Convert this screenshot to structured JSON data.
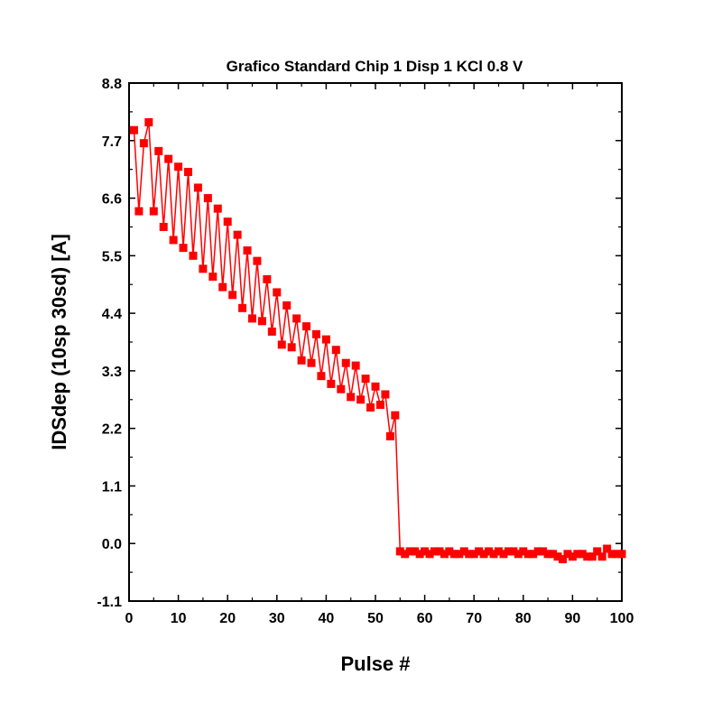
{
  "chart_data": {
    "type": "line",
    "title": "Grafico Standard Chip 1 Disp 1 KCl 0.8 V",
    "xlabel": "Pulse #",
    "ylabel": "IDSdep (10sp 30sd) [A]",
    "xlim": [
      0,
      100
    ],
    "ylim": [
      -1.1,
      8.8
    ],
    "x_ticks": [
      0,
      10,
      20,
      30,
      40,
      50,
      60,
      70,
      80,
      90,
      100
    ],
    "x_tick_labels": [
      "0",
      "10",
      "20",
      "30",
      "40",
      "50",
      "60",
      "70",
      "80",
      "90",
      "100"
    ],
    "y_ticks": [
      -1.1,
      0.0,
      1.1,
      2.2,
      3.3,
      4.4,
      5.5,
      6.6,
      7.7,
      8.8
    ],
    "y_tick_labels": [
      "-1.1",
      "0.0",
      "1.1",
      "2.2",
      "3.3",
      "4.4",
      "5.5",
      "6.6",
      "7.7",
      "8.8"
    ],
    "grid": false,
    "series": [
      {
        "color": "#ff0000",
        "marker": "square",
        "x": [
          1,
          2,
          3,
          4,
          5,
          6,
          7,
          8,
          9,
          10,
          11,
          12,
          13,
          14,
          15,
          16,
          17,
          18,
          19,
          20,
          21,
          22,
          23,
          24,
          25,
          26,
          27,
          28,
          29,
          30,
          31,
          32,
          33,
          34,
          35,
          36,
          37,
          38,
          39,
          40,
          41,
          42,
          43,
          44,
          45,
          46,
          47,
          48,
          49,
          50,
          51,
          52,
          53,
          54,
          55,
          56,
          57,
          58,
          59,
          60,
          61,
          62,
          63,
          64,
          65,
          66,
          67,
          68,
          69,
          70,
          71,
          72,
          73,
          74,
          75,
          76,
          77,
          78,
          79,
          80,
          81,
          82,
          83,
          84,
          85,
          86,
          87,
          88,
          89,
          90,
          91,
          92,
          93,
          94,
          95,
          96,
          97,
          98,
          99,
          100
        ],
        "values": [
          7.9,
          6.35,
          7.65,
          8.05,
          6.35,
          7.5,
          6.05,
          7.35,
          5.8,
          7.2,
          5.65,
          7.1,
          5.5,
          6.8,
          5.25,
          6.6,
          5.1,
          6.4,
          4.9,
          6.15,
          4.75,
          5.9,
          4.5,
          5.6,
          4.3,
          5.4,
          4.25,
          5.05,
          4.05,
          4.8,
          3.8,
          4.55,
          3.75,
          4.3,
          3.5,
          4.15,
          3.45,
          4.0,
          3.2,
          3.9,
          3.05,
          3.7,
          2.95,
          3.45,
          2.8,
          3.4,
          2.75,
          3.15,
          2.6,
          3.0,
          2.65,
          2.85,
          2.05,
          2.45,
          -0.15,
          -0.2,
          -0.15,
          -0.15,
          -0.2,
          -0.15,
          -0.2,
          -0.15,
          -0.15,
          -0.2,
          -0.15,
          -0.2,
          -0.2,
          -0.15,
          -0.2,
          -0.2,
          -0.15,
          -0.2,
          -0.15,
          -0.2,
          -0.15,
          -0.2,
          -0.15,
          -0.15,
          -0.2,
          -0.15,
          -0.2,
          -0.2,
          -0.15,
          -0.15,
          -0.2,
          -0.2,
          -0.25,
          -0.3,
          -0.2,
          -0.25,
          -0.2,
          -0.2,
          -0.25,
          -0.25,
          -0.15,
          -0.25,
          -0.1,
          -0.2,
          -0.2,
          -0.2
        ]
      }
    ]
  }
}
